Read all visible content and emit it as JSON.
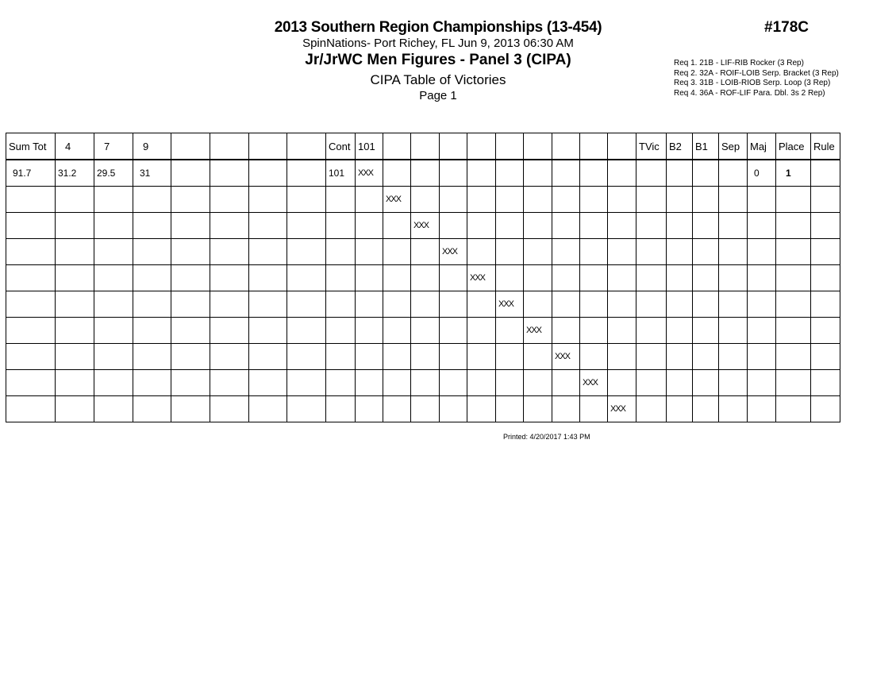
{
  "header": {
    "title": "2013 Southern Region Championships (13-454)",
    "location": "SpinNations- Port Richey, FL  Jun 9, 2013  06:30 AM",
    "event": "Jr/JrWC Men Figures - Panel 3 (CIPA)",
    "subtitle": "CIPA Table of Victories",
    "page": "Page 1",
    "event_number": "#178C"
  },
  "requirements": [
    "Req  1.  21B - LIF-RIB Rocker (3 Rep)",
    "Req  2.  32A - ROIF-LOIB Serp. Bracket (3 Rep)",
    "Req  3.  31B - LOIB-RIOB Serp. Loop (3 Rep)",
    "Req  4.  36A - ROF-LIF Para. Dbl. 3s 2 Rep)"
  ],
  "table": {
    "columns": [
      "Sum Tot",
      "4",
      "7",
      "9",
      "",
      "",
      "",
      "",
      "Cont",
      "101",
      "",
      "",
      "",
      "",
      "",
      "",
      "",
      "",
      "",
      "TVic",
      "B2",
      "B1",
      "Sep",
      "Maj",
      "Place",
      "Rule"
    ],
    "rows": [
      [
        "91.7",
        "31.2",
        "29.5",
        "31",
        "",
        "",
        "",
        "",
        "101",
        "XXX",
        "",
        "",
        "",
        "",
        "",
        "",
        "",
        "",
        "",
        "",
        "",
        "",
        "",
        "0",
        "1",
        ""
      ],
      [
        "",
        "",
        "",
        "",
        "",
        "",
        "",
        "",
        "",
        "",
        "XXX",
        "",
        "",
        "",
        "",
        "",
        "",
        "",
        "",
        "",
        "",
        "",
        "",
        "",
        "",
        ""
      ],
      [
        "",
        "",
        "",
        "",
        "",
        "",
        "",
        "",
        "",
        "",
        "",
        "XXX",
        "",
        "",
        "",
        "",
        "",
        "",
        "",
        "",
        "",
        "",
        "",
        "",
        "",
        ""
      ],
      [
        "",
        "",
        "",
        "",
        "",
        "",
        "",
        "",
        "",
        "",
        "",
        "",
        "XXX",
        "",
        "",
        "",
        "",
        "",
        "",
        "",
        "",
        "",
        "",
        "",
        "",
        ""
      ],
      [
        "",
        "",
        "",
        "",
        "",
        "",
        "",
        "",
        "",
        "",
        "",
        "",
        "",
        "XXX",
        "",
        "",
        "",
        "",
        "",
        "",
        "",
        "",
        "",
        "",
        "",
        ""
      ],
      [
        "",
        "",
        "",
        "",
        "",
        "",
        "",
        "",
        "",
        "",
        "",
        "",
        "",
        "",
        "XXX",
        "",
        "",
        "",
        "",
        "",
        "",
        "",
        "",
        "",
        "",
        ""
      ],
      [
        "",
        "",
        "",
        "",
        "",
        "",
        "",
        "",
        "",
        "",
        "",
        "",
        "",
        "",
        "",
        "XXX",
        "",
        "",
        "",
        "",
        "",
        "",
        "",
        "",
        "",
        ""
      ],
      [
        "",
        "",
        "",
        "",
        "",
        "",
        "",
        "",
        "",
        "",
        "",
        "",
        "",
        "",
        "",
        "",
        "XXX",
        "",
        "",
        "",
        "",
        "",
        "",
        "",
        "",
        ""
      ],
      [
        "",
        "",
        "",
        "",
        "",
        "",
        "",
        "",
        "",
        "",
        "",
        "",
        "",
        "",
        "",
        "",
        "",
        "XXX",
        "",
        "",
        "",
        "",
        "",
        "",
        "",
        ""
      ],
      [
        "",
        "",
        "",
        "",
        "",
        "",
        "",
        "",
        "",
        "",
        "",
        "",
        "",
        "",
        "",
        "",
        "",
        "",
        "XXX",
        "",
        "",
        "",
        "",
        "",
        "",
        ""
      ]
    ]
  },
  "footer": {
    "printed": "Printed:  4/20/2017  1:43 PM"
  }
}
